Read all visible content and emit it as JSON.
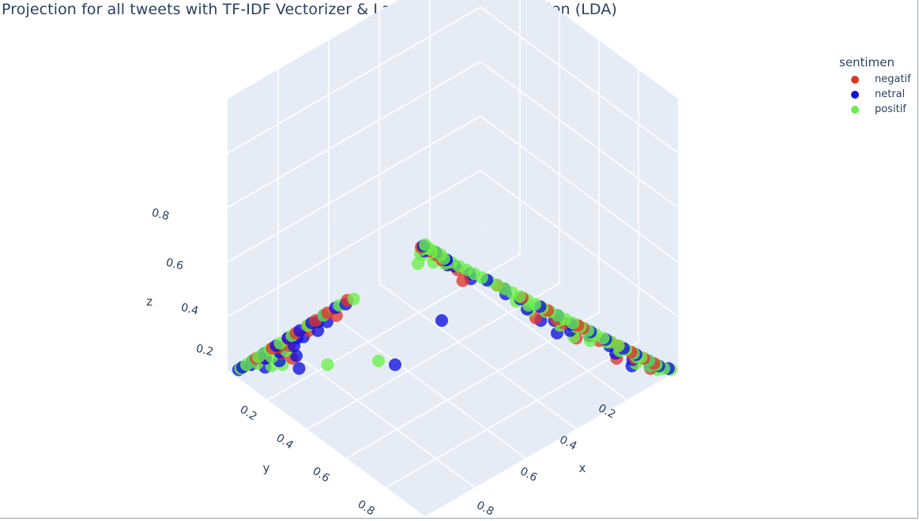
{
  "chart_data": {
    "type": "scatter",
    "title": "Projection for all tweets with TF-IDF Vectorizer & Latent Dirichlet Allocation (LDA)",
    "xlabel": "x",
    "ylabel": "y",
    "zlabel": "z",
    "xticks": [
      "0.2",
      "0.4",
      "0.6",
      "0.8"
    ],
    "yticks": [
      "0.2",
      "0.4",
      "0.6",
      "0.8"
    ],
    "zticks": [
      "0.2",
      "0.4",
      "0.6",
      "0.8"
    ],
    "xlim": [
      0,
      1
    ],
    "ylim": [
      0,
      1
    ],
    "zlim": [
      0,
      1
    ],
    "legend_title": "sentimen",
    "legend_position": "top-right",
    "grid": true,
    "series": [
      {
        "name": "negatif",
        "color": "#e0342a",
        "points": [
          [
            0.0,
            0.02,
            0.98
          ],
          [
            0.03,
            0.02,
            0.95
          ],
          [
            0.12,
            0.04,
            0.84
          ],
          [
            0.16,
            0.04,
            0.8
          ],
          [
            0.18,
            0.04,
            0.75
          ],
          [
            0.06,
            0.02,
            0.92
          ],
          [
            0.09,
            0.03,
            0.88
          ],
          [
            0.88,
            0.02,
            0.1
          ],
          [
            0.83,
            0.02,
            0.15
          ],
          [
            0.75,
            0.02,
            0.23
          ],
          [
            0.62,
            0.02,
            0.36
          ],
          [
            0.5,
            0.02,
            0.48
          ],
          [
            0.4,
            0.02,
            0.58
          ],
          [
            0.3,
            0.02,
            0.68
          ],
          [
            0.86,
            0.04,
            0.1
          ],
          [
            0.72,
            0.04,
            0.24
          ],
          [
            0.55,
            0.04,
            0.41
          ],
          [
            0.02,
            0.88,
            0.1
          ],
          [
            0.02,
            0.8,
            0.18
          ],
          [
            0.02,
            0.72,
            0.26
          ],
          [
            0.02,
            0.62,
            0.36
          ],
          [
            0.02,
            0.52,
            0.46
          ],
          [
            0.02,
            0.42,
            0.56
          ],
          [
            0.04,
            0.86,
            0.1
          ],
          [
            0.05,
            0.75,
            0.2
          ],
          [
            0.04,
            0.64,
            0.32
          ],
          [
            0.82,
            0.08,
            0.1
          ],
          [
            0.92,
            0.02,
            0.06
          ],
          [
            0.66,
            0.08,
            0.26
          ],
          [
            0.5,
            0.08,
            0.42
          ],
          [
            0.04,
            0.5,
            0.45
          ],
          [
            0.06,
            0.8,
            0.14
          ],
          [
            0.1,
            0.8,
            0.1
          ],
          [
            0.93,
            0.05,
            0.02
          ],
          [
            0.78,
            0.02,
            0.2
          ],
          [
            0.64,
            0.02,
            0.34
          ],
          [
            0.58,
            0.04,
            0.38
          ],
          [
            0.02,
            0.68,
            0.3
          ],
          [
            0.02,
            0.58,
            0.4
          ],
          [
            0.03,
            0.78,
            0.19
          ]
        ]
      },
      {
        "name": "netral",
        "color": "#1010e0",
        "points": [
          [
            0.0,
            0.01,
            0.99
          ],
          [
            0.02,
            0.03,
            0.95
          ],
          [
            0.05,
            0.01,
            0.94
          ],
          [
            0.1,
            0.02,
            0.88
          ],
          [
            0.14,
            0.03,
            0.83
          ],
          [
            0.2,
            0.03,
            0.77
          ],
          [
            0.26,
            0.02,
            0.72
          ],
          [
            0.33,
            0.02,
            0.65
          ],
          [
            0.4,
            0.03,
            0.57
          ],
          [
            0.47,
            0.02,
            0.51
          ],
          [
            0.54,
            0.02,
            0.44
          ],
          [
            0.6,
            0.03,
            0.37
          ],
          [
            0.67,
            0.02,
            0.31
          ],
          [
            0.73,
            0.02,
            0.25
          ],
          [
            0.8,
            0.02,
            0.18
          ],
          [
            0.85,
            0.02,
            0.13
          ],
          [
            0.9,
            0.02,
            0.08
          ],
          [
            0.94,
            0.02,
            0.04
          ],
          [
            0.02,
            0.95,
            0.03
          ],
          [
            0.02,
            0.9,
            0.08
          ],
          [
            0.02,
            0.84,
            0.14
          ],
          [
            0.02,
            0.78,
            0.2
          ],
          [
            0.02,
            0.72,
            0.26
          ],
          [
            0.02,
            0.66,
            0.32
          ],
          [
            0.02,
            0.6,
            0.38
          ],
          [
            0.02,
            0.54,
            0.44
          ],
          [
            0.02,
            0.48,
            0.5
          ],
          [
            0.03,
            0.44,
            0.53
          ],
          [
            0.03,
            0.92,
            0.05
          ],
          [
            0.04,
            0.86,
            0.1
          ],
          [
            0.05,
            0.8,
            0.15
          ],
          [
            0.06,
            0.74,
            0.2
          ],
          [
            0.05,
            0.68,
            0.27
          ],
          [
            0.06,
            0.62,
            0.32
          ],
          [
            0.05,
            0.56,
            0.39
          ],
          [
            0.08,
            0.84,
            0.08
          ],
          [
            0.1,
            0.78,
            0.12
          ],
          [
            0.15,
            0.83,
            0.02
          ],
          [
            0.35,
            0.6,
            0.05
          ],
          [
            0.3,
            0.3,
            0.4
          ],
          [
            0.62,
            0.06,
            0.32
          ],
          [
            0.52,
            0.08,
            0.4
          ],
          [
            0.8,
            0.06,
            0.14
          ],
          [
            0.45,
            0.06,
            0.49
          ],
          [
            0.12,
            0.04,
            0.84
          ],
          [
            0.22,
            0.05,
            0.73
          ],
          [
            0.68,
            0.04,
            0.28
          ],
          [
            0.76,
            0.04,
            0.2
          ],
          [
            0.86,
            0.05,
            0.09
          ],
          [
            0.92,
            0.04,
            0.04
          ],
          [
            0.97,
            0.01,
            0.02
          ],
          [
            0.02,
            0.97,
            0.01
          ],
          [
            0.04,
            0.7,
            0.26
          ],
          [
            0.07,
            0.9,
            0.03
          ],
          [
            0.88,
            0.08,
            0.04
          ],
          [
            0.6,
            0.1,
            0.3
          ],
          [
            0.1,
            0.02,
            0.88
          ],
          [
            0.03,
            0.58,
            0.39
          ],
          [
            0.55,
            0.05,
            0.4
          ],
          [
            0.35,
            0.04,
            0.61
          ]
        ]
      },
      {
        "name": "positif",
        "color": "#6cf04a",
        "points": [
          [
            0.0,
            0.0,
            1.0
          ],
          [
            0.01,
            0.01,
            0.98
          ],
          [
            0.02,
            0.01,
            0.97
          ],
          [
            0.03,
            0.01,
            0.96
          ],
          [
            0.04,
            0.02,
            0.94
          ],
          [
            0.05,
            0.01,
            0.94
          ],
          [
            0.07,
            0.01,
            0.92
          ],
          [
            0.09,
            0.02,
            0.89
          ],
          [
            0.12,
            0.02,
            0.86
          ],
          [
            0.15,
            0.02,
            0.83
          ],
          [
            0.18,
            0.02,
            0.8
          ],
          [
            0.21,
            0.02,
            0.77
          ],
          [
            0.24,
            0.02,
            0.74
          ],
          [
            0.27,
            0.02,
            0.71
          ],
          [
            0.3,
            0.02,
            0.68
          ],
          [
            0.33,
            0.02,
            0.65
          ],
          [
            0.36,
            0.02,
            0.62
          ],
          [
            0.39,
            0.02,
            0.59
          ],
          [
            0.42,
            0.02,
            0.56
          ],
          [
            0.45,
            0.02,
            0.53
          ],
          [
            0.48,
            0.02,
            0.5
          ],
          [
            0.51,
            0.02,
            0.47
          ],
          [
            0.54,
            0.02,
            0.44
          ],
          [
            0.57,
            0.02,
            0.41
          ],
          [
            0.6,
            0.02,
            0.38
          ],
          [
            0.63,
            0.02,
            0.35
          ],
          [
            0.66,
            0.02,
            0.32
          ],
          [
            0.69,
            0.02,
            0.29
          ],
          [
            0.72,
            0.02,
            0.26
          ],
          [
            0.75,
            0.02,
            0.23
          ],
          [
            0.78,
            0.02,
            0.2
          ],
          [
            0.81,
            0.02,
            0.17
          ],
          [
            0.84,
            0.02,
            0.14
          ],
          [
            0.87,
            0.02,
            0.11
          ],
          [
            0.9,
            0.02,
            0.08
          ],
          [
            0.93,
            0.02,
            0.05
          ],
          [
            0.96,
            0.02,
            0.02
          ],
          [
            0.98,
            0.01,
            0.01
          ],
          [
            0.95,
            0.04,
            0.01
          ],
          [
            0.92,
            0.04,
            0.04
          ],
          [
            0.86,
            0.03,
            0.11
          ],
          [
            0.8,
            0.04,
            0.16
          ],
          [
            0.74,
            0.03,
            0.23
          ],
          [
            0.68,
            0.04,
            0.28
          ],
          [
            0.62,
            0.03,
            0.35
          ],
          [
            0.56,
            0.04,
            0.4
          ],
          [
            0.5,
            0.03,
            0.47
          ],
          [
            0.44,
            0.04,
            0.52
          ],
          [
            0.02,
            0.96,
            0.02
          ],
          [
            0.02,
            0.93,
            0.05
          ],
          [
            0.02,
            0.9,
            0.08
          ],
          [
            0.02,
            0.87,
            0.11
          ],
          [
            0.02,
            0.84,
            0.14
          ],
          [
            0.02,
            0.81,
            0.17
          ],
          [
            0.02,
            0.76,
            0.22
          ],
          [
            0.02,
            0.7,
            0.28
          ],
          [
            0.02,
            0.62,
            0.36
          ],
          [
            0.02,
            0.54,
            0.44
          ],
          [
            0.02,
            0.46,
            0.52
          ],
          [
            0.03,
            0.4,
            0.57
          ],
          [
            0.04,
            0.9,
            0.06
          ],
          [
            0.05,
            0.84,
            0.11
          ],
          [
            0.06,
            0.78,
            0.16
          ],
          [
            0.08,
            0.88,
            0.04
          ],
          [
            0.1,
            0.85,
            0.05
          ],
          [
            0.2,
            0.75,
            0.05
          ],
          [
            0.3,
            0.62,
            0.08
          ],
          [
            0.05,
            0.1,
            0.85
          ],
          [
            0.08,
            0.06,
            0.86
          ],
          [
            0.03,
            0.05,
            0.92
          ],
          [
            0.88,
            0.06,
            0.06
          ],
          [
            0.7,
            0.06,
            0.24
          ],
          [
            0.65,
            0.08,
            0.27
          ],
          [
            0.58,
            0.06,
            0.36
          ],
          [
            0.46,
            0.06,
            0.48
          ],
          [
            0.4,
            0.05,
            0.55
          ],
          [
            0.01,
            0.03,
            0.96
          ],
          [
            0.02,
            0.05,
            0.93
          ],
          [
            0.06,
            0.03,
            0.91
          ],
          [
            0.11,
            0.04,
            0.85
          ]
        ]
      }
    ]
  }
}
